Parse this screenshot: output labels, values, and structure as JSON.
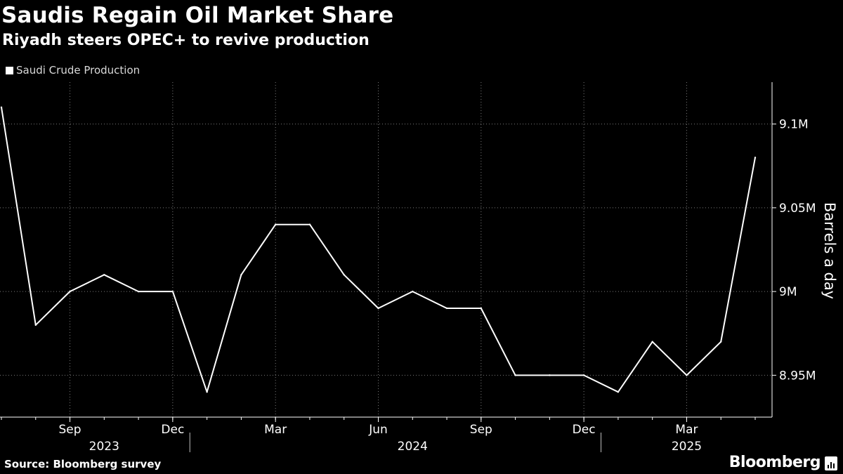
{
  "header": {
    "title": "Saudis Regain Oil Market Share",
    "subtitle": "Riyadh steers OPEC+ to revive production"
  },
  "footer": {
    "source": "Source: Bloomberg survey",
    "brand": "Bloomberg"
  },
  "colors": {
    "background": "#000000",
    "line": "#ffffff",
    "grid": "#7a7a7a"
  },
  "chart_data": {
    "type": "line",
    "title": "Saudis Regain Oil Market Share",
    "subtitle": "Riyadh steers OPEC+ to revive production",
    "ylabel": "Barrels a day",
    "ylim": [
      8.925,
      9.125
    ],
    "yticks": [
      {
        "value": 8.95,
        "label": "8.95M"
      },
      {
        "value": 9.0,
        "label": "9M"
      },
      {
        "value": 9.05,
        "label": "9.05M"
      },
      {
        "value": 9.1,
        "label": "9.1M"
      }
    ],
    "xticks": [
      {
        "date": "2023-09",
        "label": "Sep"
      },
      {
        "date": "2023-12",
        "label": "Dec"
      },
      {
        "date": "2024-03",
        "label": "Mar"
      },
      {
        "date": "2024-06",
        "label": "Jun"
      },
      {
        "date": "2024-09",
        "label": "Sep"
      },
      {
        "date": "2024-12",
        "label": "Dec"
      },
      {
        "date": "2025-03",
        "label": "Mar"
      }
    ],
    "years": [
      {
        "label": "2023",
        "center": "2023-10"
      },
      {
        "label": "2024",
        "center": "2024-07"
      },
      {
        "label": "2025",
        "center": "2025-03"
      }
    ],
    "year_boundaries": [
      "2024-01",
      "2025-01"
    ],
    "grid": true,
    "legend": {
      "position": "top-left",
      "entries": [
        "Saudi Crude Production"
      ]
    },
    "series": [
      {
        "name": "Saudi Crude Production",
        "x": [
          "2023-07",
          "2023-08",
          "2023-09",
          "2023-10",
          "2023-11",
          "2023-12",
          "2024-01",
          "2024-02",
          "2024-03",
          "2024-04",
          "2024-05",
          "2024-06",
          "2024-07",
          "2024-08",
          "2024-09",
          "2024-10",
          "2024-11",
          "2024-12",
          "2025-01",
          "2025-02",
          "2025-03",
          "2025-04",
          "2025-05"
        ],
        "values": [
          9.11,
          8.98,
          9.0,
          9.01,
          9.0,
          9.0,
          8.94,
          9.01,
          9.04,
          9.04,
          9.01,
          8.99,
          9.0,
          8.99,
          8.99,
          8.95,
          8.95,
          8.95,
          8.94,
          8.97,
          8.95,
          8.97,
          9.08
        ]
      }
    ]
  }
}
